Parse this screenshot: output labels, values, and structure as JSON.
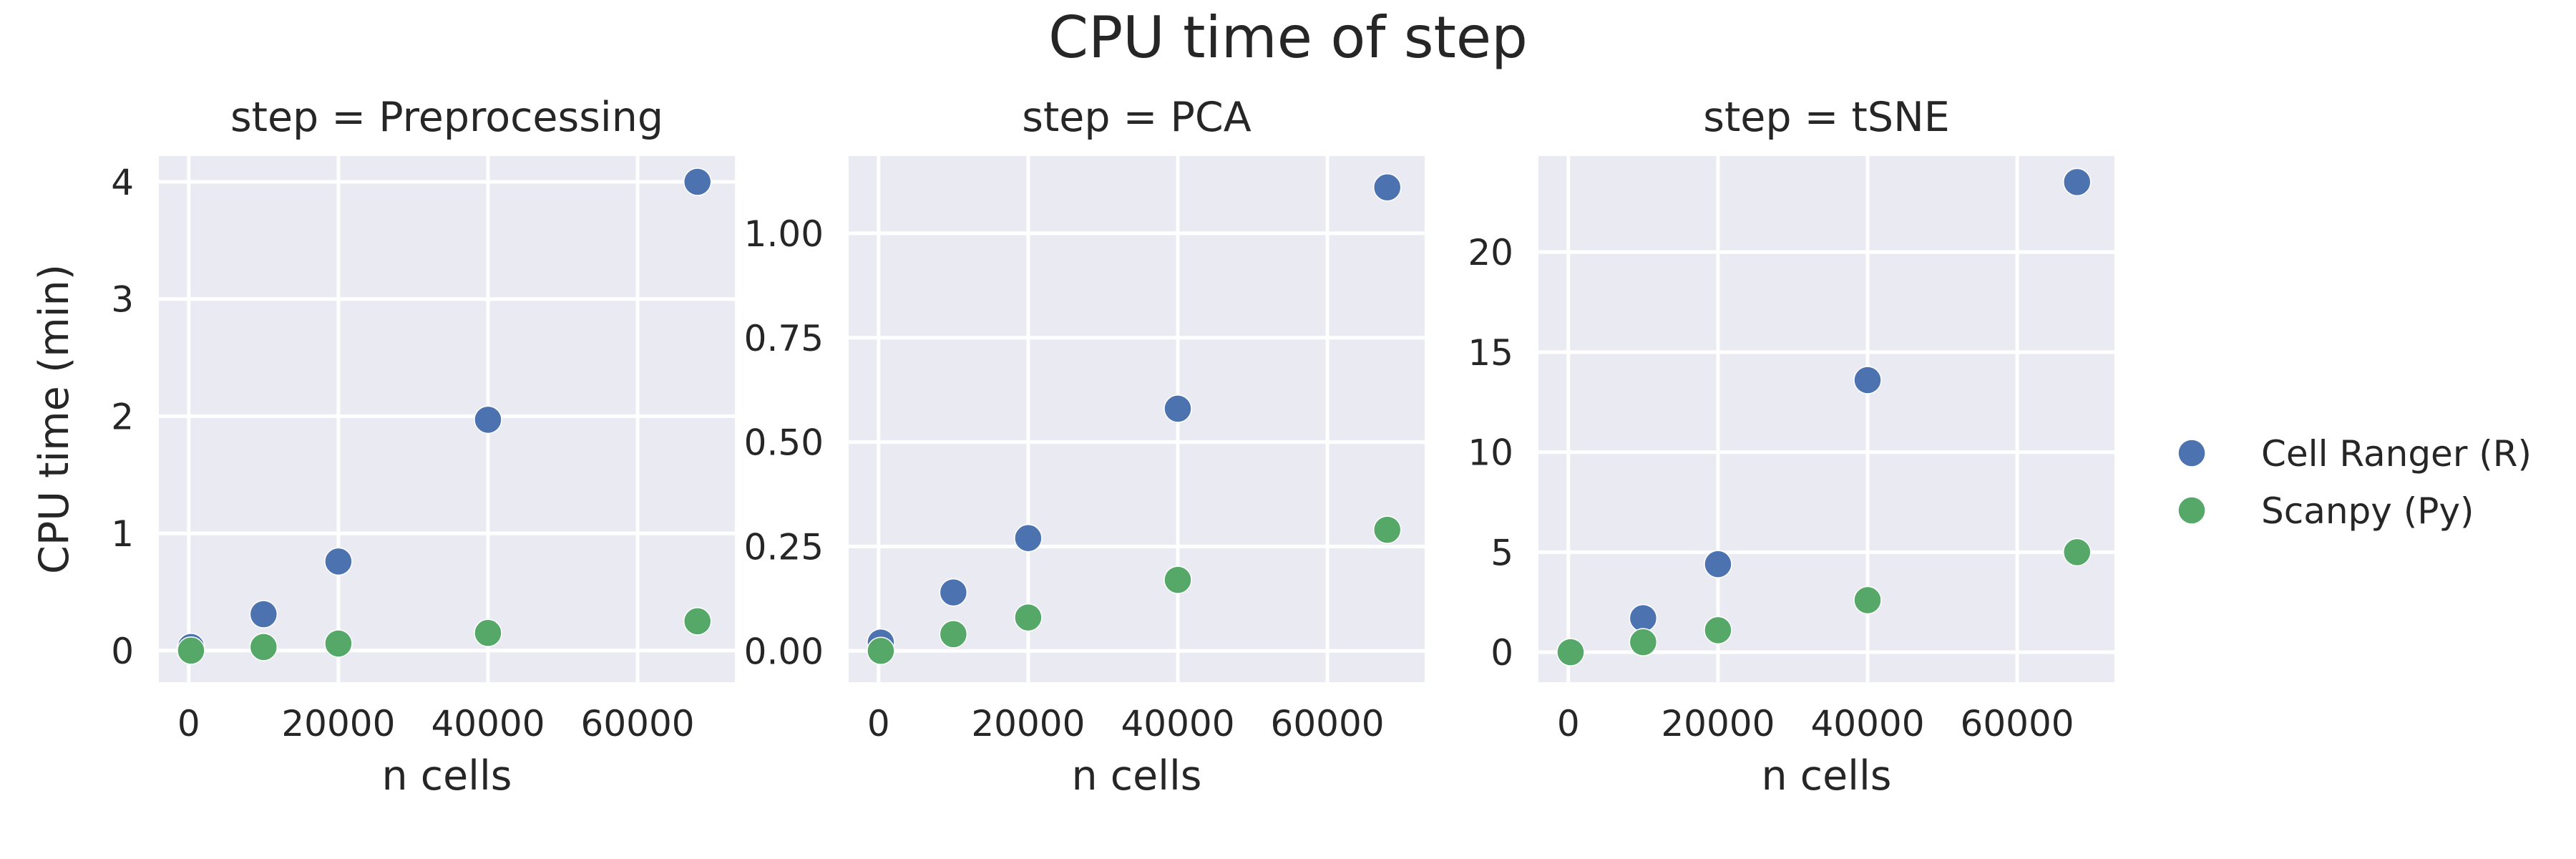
{
  "chart_data": {
    "type": "scatter",
    "title": "CPU time of step",
    "colors": {
      "Cell Ranger (R)": "#4C72B0",
      "Scanpy (Py)": "#55A868",
      "plot_background": "#EAEAF2",
      "grid": "#FFFFFF"
    },
    "legend_position": "right",
    "grid": true,
    "legend": [
      "Cell Ranger (R)",
      "Scanpy (Py)"
    ],
    "panels": [
      {
        "title": "step = Preprocessing",
        "xlabel": "n cells",
        "ylabel": "CPU time (min)",
        "xlim": [
          -4000,
          73000
        ],
        "ylim": [
          -0.27,
          4.22
        ],
        "xticks": [
          0,
          20000,
          40000,
          60000
        ],
        "xtick_labels": [
          "0",
          "20000",
          "40000",
          "60000"
        ],
        "yticks": [
          0,
          1,
          2,
          3,
          4
        ],
        "ytick_labels": [
          "0",
          "1",
          "2",
          "3",
          "4"
        ],
        "series": [
          {
            "name": "Cell Ranger (R)",
            "x": [
              300,
              10000,
              20000,
              40000,
              68000
            ],
            "y": [
              0.03,
              0.31,
              0.76,
              1.97,
              4.0
            ]
          },
          {
            "name": "Scanpy (Py)",
            "x": [
              300,
              10000,
              20000,
              40000,
              68000
            ],
            "y": [
              0.0,
              0.03,
              0.06,
              0.15,
              0.25
            ]
          }
        ]
      },
      {
        "title": "step = PCA",
        "xlabel": "n cells",
        "ylabel": "",
        "xlim": [
          -4000,
          73000
        ],
        "ylim": [
          -0.075,
          1.185
        ],
        "xticks": [
          0,
          20000,
          40000,
          60000
        ],
        "xtick_labels": [
          "0",
          "20000",
          "40000",
          "60000"
        ],
        "yticks": [
          0,
          0.25,
          0.5,
          0.75,
          1.0
        ],
        "ytick_labels": [
          "0.00",
          "0.25",
          "0.50",
          "0.75",
          "1.00"
        ],
        "series": [
          {
            "name": "Cell Ranger (R)",
            "x": [
              300,
              10000,
              20000,
              40000,
              68000
            ],
            "y": [
              0.02,
              0.14,
              0.27,
              0.58,
              1.11
            ]
          },
          {
            "name": "Scanpy (Py)",
            "x": [
              300,
              10000,
              20000,
              40000,
              68000
            ],
            "y": [
              0.0,
              0.04,
              0.08,
              0.17,
              0.29
            ]
          }
        ]
      },
      {
        "title": "step = tSNE",
        "xlabel": "n cells",
        "ylabel": "",
        "xlim": [
          -4000,
          73000
        ],
        "ylim": [
          -1.5,
          24.8
        ],
        "xticks": [
          0,
          20000,
          40000,
          60000
        ],
        "xtick_labels": [
          "0",
          "20000",
          "40000",
          "60000"
        ],
        "yticks": [
          0,
          5,
          10,
          15,
          20
        ],
        "ytick_labels": [
          "0",
          "5",
          "10",
          "15",
          "20"
        ],
        "series": [
          {
            "name": "Cell Ranger (R)",
            "x": [
              300,
              10000,
              20000,
              40000,
              68000
            ],
            "y": [
              0.0,
              1.7,
              4.4,
              13.6,
              23.5
            ]
          },
          {
            "name": "Scanpy (Py)",
            "x": [
              300,
              10000,
              20000,
              40000,
              68000
            ],
            "y": [
              0.0,
              0.5,
              1.1,
              2.6,
              5.0
            ]
          }
        ]
      }
    ]
  }
}
